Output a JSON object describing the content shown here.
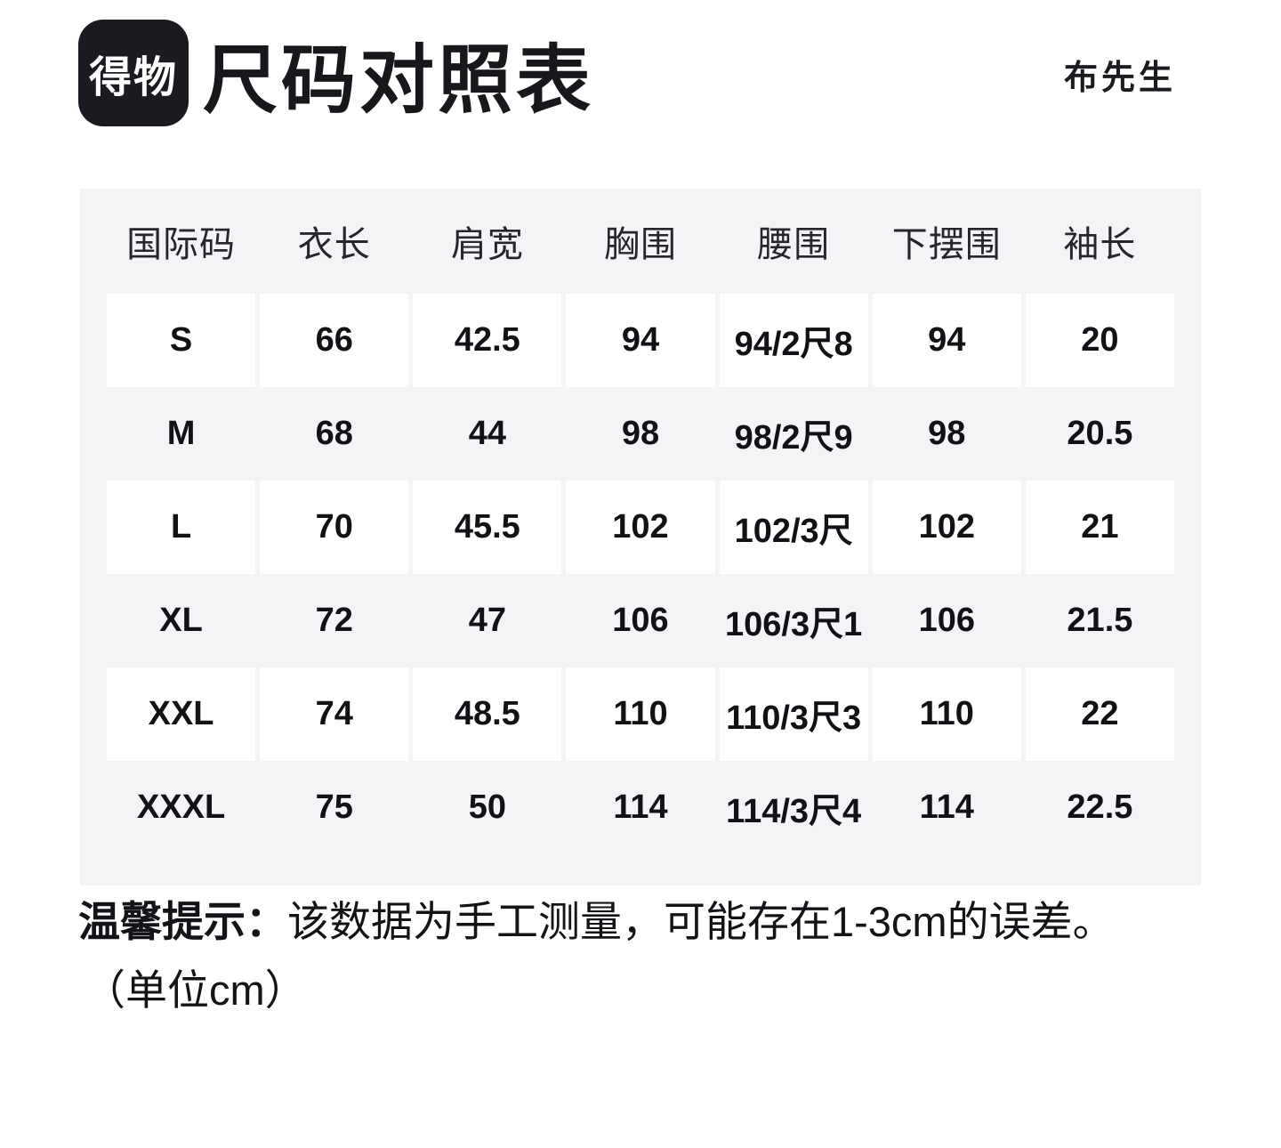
{
  "header": {
    "logo_text": "得物",
    "title": "尺码对照表",
    "brand": "布先生"
  },
  "table": {
    "columns": [
      "国际码",
      "衣长",
      "肩宽",
      "胸围",
      "腰围",
      "下摆围",
      "袖长"
    ],
    "rows": [
      {
        "size": "S",
        "values": [
          "66",
          "42.5",
          "94",
          "94/2尺8",
          "94",
          "20"
        ]
      },
      {
        "size": "M",
        "values": [
          "68",
          "44",
          "98",
          "98/2尺9",
          "98",
          "20.5"
        ]
      },
      {
        "size": "L",
        "values": [
          "70",
          "45.5",
          "102",
          "102/3尺",
          "102",
          "21"
        ]
      },
      {
        "size": "XL",
        "values": [
          "72",
          "47",
          "106",
          "106/3尺1",
          "106",
          "21.5"
        ]
      },
      {
        "size": "XXL",
        "values": [
          "74",
          "48.5",
          "110",
          "110/3尺3",
          "110",
          "22"
        ]
      },
      {
        "size": "XXXL",
        "values": [
          "75",
          "50",
          "114",
          "114/3尺4",
          "114",
          "22.5"
        ]
      }
    ]
  },
  "footer": {
    "tip_label": "温馨提示：",
    "tip_text": "该数据为手工测量，可能存在1-3cm的误差。",
    "unit_note": "（单位cm）"
  },
  "colors": {
    "panel_bg": "#f4f4f6",
    "cell_bg": "#ffffff",
    "logo_bg": "#1a1a21",
    "text": "#15151a"
  },
  "chart_data": {
    "type": "table",
    "title": "尺码对照表",
    "columns": [
      "国际码",
      "衣长",
      "肩宽",
      "胸围",
      "腰围",
      "下摆围",
      "袖长"
    ],
    "rows": [
      [
        "S",
        "66",
        "42.5",
        "94",
        "94/2尺8",
        "94",
        "20"
      ],
      [
        "M",
        "68",
        "44",
        "98",
        "98/2尺9",
        "98",
        "20.5"
      ],
      [
        "L",
        "70",
        "45.5",
        "102",
        "102/3尺",
        "102",
        "21"
      ],
      [
        "XL",
        "72",
        "47",
        "106",
        "106/3尺1",
        "106",
        "21.5"
      ],
      [
        "XXL",
        "74",
        "48.5",
        "110",
        "110/3尺3",
        "110",
        "22"
      ],
      [
        "XXXL",
        "75",
        "50",
        "114",
        "114/3尺4",
        "114",
        "22.5"
      ]
    ],
    "notes": [
      "温馨提示：该数据为手工测量，可能存在1-3cm的误差。",
      "（单位cm）"
    ],
    "unit": "cm"
  }
}
